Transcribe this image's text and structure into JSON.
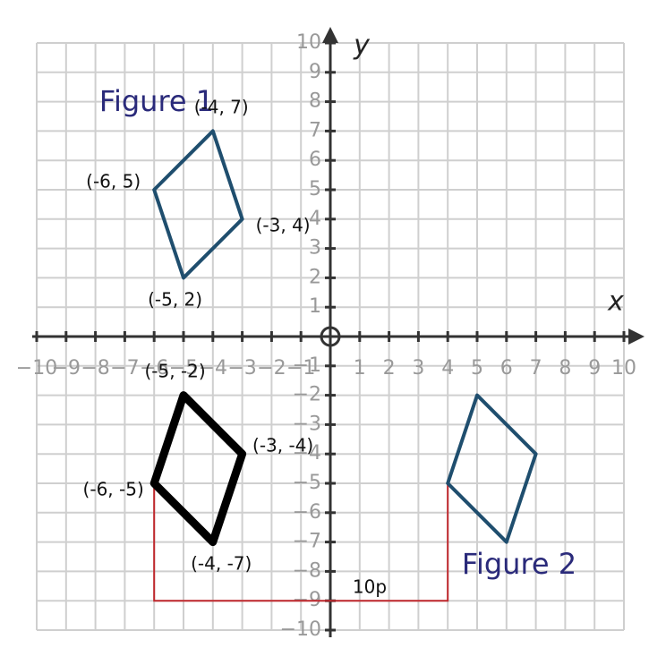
{
  "axes": {
    "x_label": "x",
    "y_label": "y",
    "xlim": [
      -10,
      10
    ],
    "ylim": [
      -10,
      10
    ],
    "xticks": [
      {
        "value": -10,
        "label": "−10"
      },
      {
        "value": -9,
        "label": "−9"
      },
      {
        "value": -8,
        "label": "−8"
      },
      {
        "value": -7,
        "label": "−7"
      },
      {
        "value": -6,
        "label": "−6"
      },
      {
        "value": -5,
        "label": "−5"
      },
      {
        "value": -4,
        "label": "−4"
      },
      {
        "value": -3,
        "label": "−3"
      },
      {
        "value": -2,
        "label": "−2"
      },
      {
        "value": -1,
        "label": "−1"
      },
      1,
      2,
      3,
      4,
      5,
      6,
      7,
      8,
      9,
      10
    ],
    "yticks": [
      {
        "value": -10,
        "label": "−10"
      },
      {
        "value": -9,
        "label": "−9"
      },
      {
        "value": -8,
        "label": "−8"
      },
      {
        "value": -7,
        "label": "−7"
      },
      {
        "value": -6,
        "label": "−6"
      },
      {
        "value": -5,
        "label": "−5"
      },
      {
        "value": -4,
        "label": "−4"
      },
      {
        "value": -3,
        "label": "−3"
      },
      {
        "value": -2,
        "label": "−2"
      },
      {
        "value": -1,
        "label": "−1"
      },
      1,
      2,
      3,
      4,
      5,
      6,
      7,
      8,
      9,
      10
    ]
  },
  "figures": [
    {
      "name": "Figure 1",
      "color": "#1f4e6e",
      "points": [
        {
          "x": -4,
          "y": 7
        },
        {
          "x": -3,
          "y": 4
        },
        {
          "x": -5,
          "y": 2
        },
        {
          "x": -6,
          "y": 5
        }
      ],
      "labels": [
        "(-4, 7)",
        "(-3, 4)",
        "(-5, 2)",
        "(-6, 5)"
      ]
    },
    {
      "color": "#000000",
      "points": [
        {
          "x": -5,
          "y": -2
        },
        {
          "x": -3,
          "y": -4
        },
        {
          "x": -4,
          "y": -7
        },
        {
          "x": -6,
          "y": -5
        }
      ],
      "labels": [
        "(-5, -2)",
        "(-3, -4)",
        "(-4, -7)",
        "(-6, -5)"
      ]
    },
    {
      "name": "Figure 2",
      "color": "#1f4e6e",
      "points": [
        {
          "x": 5,
          "y": -2
        },
        {
          "x": 7,
          "y": -4
        },
        {
          "x": 6,
          "y": -7
        },
        {
          "x": 4,
          "y": -5
        }
      ]
    }
  ],
  "measure": {
    "label": "10p",
    "color": "#c0282d",
    "path": [
      {
        "x": -6,
        "y": -5
      },
      {
        "x": -6,
        "y": -9
      },
      {
        "x": 4,
        "y": -9
      },
      {
        "x": 4,
        "y": -5
      }
    ]
  }
}
